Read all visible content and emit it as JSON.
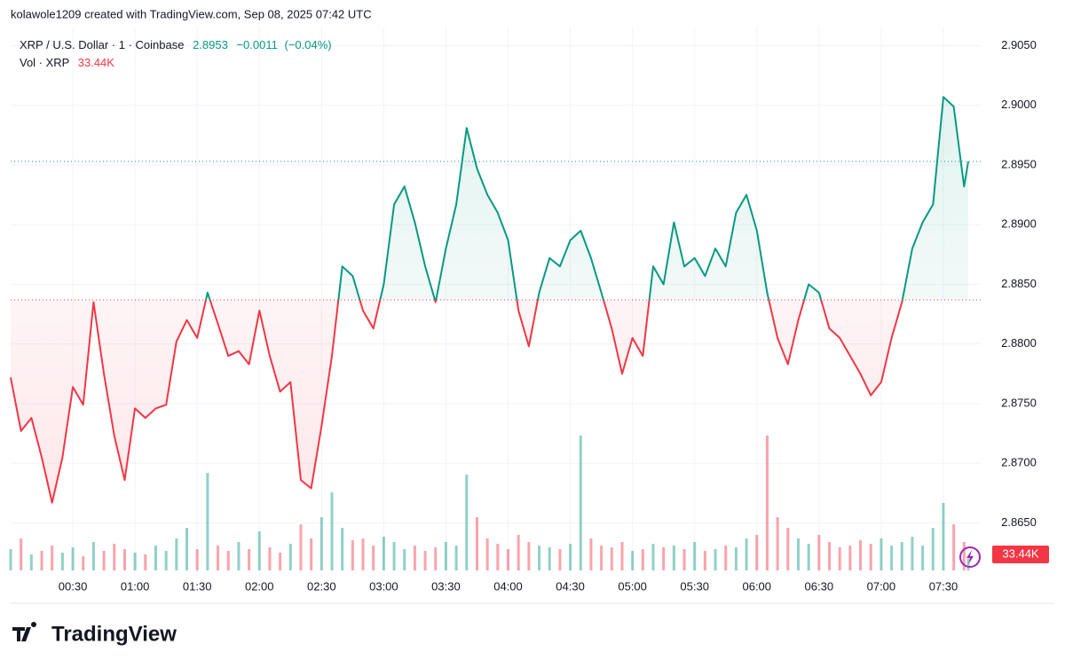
{
  "header": "kolawole1209 created with TradingView.com, Sep 08, 2025 07:42 UTC",
  "logo": "TradingView",
  "chart_data": {
    "type": "baseline",
    "symbol": "XRP / U.S. Dollar · 1 · Coinbase",
    "last_price": 2.8953,
    "change": "−0.0011",
    "change_percent": "(−0.04%)",
    "baseline": 2.8837,
    "up_color": "#089981",
    "down_color": "#f23645",
    "grid": true,
    "x": [
      "00:00",
      "00:05",
      "00:10",
      "00:15",
      "00:20",
      "00:25",
      "00:30",
      "00:35",
      "00:40",
      "00:45",
      "00:50",
      "00:55",
      "01:00",
      "01:05",
      "01:10",
      "01:15",
      "01:20",
      "01:25",
      "01:30",
      "01:35",
      "01:40",
      "01:45",
      "01:50",
      "01:55",
      "02:00",
      "02:05",
      "02:10",
      "02:15",
      "02:20",
      "02:25",
      "02:30",
      "02:35",
      "02:40",
      "02:45",
      "02:50",
      "02:55",
      "03:00",
      "03:05",
      "03:10",
      "03:15",
      "03:20",
      "03:25",
      "03:30",
      "03:35",
      "03:40",
      "03:45",
      "03:50",
      "03:55",
      "04:00",
      "04:05",
      "04:10",
      "04:15",
      "04:20",
      "04:25",
      "04:30",
      "04:35",
      "04:40",
      "04:45",
      "04:50",
      "04:55",
      "05:00",
      "05:05",
      "05:10",
      "05:15",
      "05:20",
      "05:25",
      "05:30",
      "05:35",
      "05:40",
      "05:45",
      "05:50",
      "05:55",
      "06:00",
      "06:05",
      "06:10",
      "06:15",
      "06:20",
      "06:25",
      "06:30",
      "06:35",
      "06:40",
      "06:45",
      "06:50",
      "06:55",
      "07:00",
      "07:05",
      "07:10",
      "07:15",
      "07:20",
      "07:25",
      "07:30",
      "07:35",
      "07:40",
      "07:42"
    ],
    "values": [
      2.8772,
      2.8727,
      2.8738,
      2.8705,
      2.8667,
      2.8705,
      2.8764,
      2.8749,
      2.8835,
      2.8775,
      2.8723,
      2.8686,
      2.8746,
      2.8738,
      2.8746,
      2.8749,
      2.8802,
      2.882,
      2.8805,
      2.8843,
      2.8817,
      2.879,
      2.8794,
      2.8783,
      2.8828,
      2.879,
      2.876,
      2.8768,
      2.8686,
      2.8679,
      2.8731,
      2.879,
      2.8865,
      2.8857,
      2.8828,
      2.8813,
      2.885,
      2.8917,
      2.8932,
      2.8902,
      2.8865,
      2.8835,
      2.888,
      2.8917,
      2.8981,
      2.8947,
      2.8925,
      2.891,
      2.8887,
      2.8828,
      2.8798,
      2.8843,
      2.8872,
      2.8865,
      2.8887,
      2.8895,
      2.8872,
      2.8843,
      2.8813,
      2.8775,
      2.8805,
      2.879,
      2.8865,
      2.885,
      2.8902,
      2.8865,
      2.8872,
      2.8857,
      2.888,
      2.8865,
      2.891,
      2.8925,
      2.8895,
      2.8843,
      2.8805,
      2.8783,
      2.882,
      2.885,
      2.8843,
      2.8813,
      2.8805,
      2.879,
      2.8775,
      2.8757,
      2.8768,
      2.8805,
      2.8835,
      2.888,
      2.8902,
      2.8917,
      2.9007,
      2.8999,
      2.8932,
      2.8953
    ],
    "volume": {
      "name": "Vol · XRP",
      "values": [
        60000,
        90000,
        45000,
        55000,
        70000,
        50000,
        65000,
        40000,
        80000,
        55000,
        75000,
        60000,
        50000,
        45000,
        70000,
        55000,
        90000,
        120000,
        60000,
        275000,
        70000,
        55000,
        80000,
        60000,
        110000,
        65000,
        50000,
        75000,
        130000,
        90000,
        150000,
        220000,
        120000,
        85000,
        90000,
        70000,
        95000,
        80000,
        60000,
        70000,
        55000,
        65000,
        80000,
        70000,
        270000,
        150000,
        90000,
        75000,
        60000,
        100000,
        80000,
        70000,
        65000,
        60000,
        75000,
        380000,
        90000,
        70000,
        65000,
        80000,
        55000,
        60000,
        75000,
        65000,
        70000,
        60000,
        80000,
        55000,
        60000,
        70000,
        65000,
        90000,
        100000,
        380000,
        150000,
        120000,
        90000,
        75000,
        100000,
        80000,
        65000,
        70000,
        85000,
        75000,
        90000,
        70000,
        80000,
        95000,
        70000,
        120000,
        190000,
        130000,
        80000,
        33440
      ],
      "current": {
        "value": 33440,
        "label": "33.44K"
      },
      "vlim": [
        0,
        400000
      ]
    },
    "xlim": [
      "00:00",
      "07:48"
    ],
    "xticks": [
      "00:30",
      "01:00",
      "01:30",
      "02:00",
      "02:30",
      "03:00",
      "03:30",
      "04:00",
      "04:30",
      "05:00",
      "05:30",
      "06:00",
      "06:30",
      "07:00",
      "07:30"
    ],
    "ylim": [
      2.8605,
      2.9066
    ],
    "yticks": [
      {
        "value": 2.865,
        "label": "2.8650"
      },
      {
        "value": 2.87,
        "label": "2.8700"
      },
      {
        "value": 2.875,
        "label": "2.8750"
      },
      {
        "value": 2.88,
        "label": "2.8800"
      },
      {
        "value": 2.885,
        "label": "2.8850"
      },
      {
        "value": 2.89,
        "label": "2.8900"
      },
      {
        "value": 2.895,
        "label": "2.8950"
      },
      {
        "value": 2.9,
        "label": "2.9000"
      },
      {
        "value": 2.905,
        "label": "2.9050"
      }
    ]
  }
}
